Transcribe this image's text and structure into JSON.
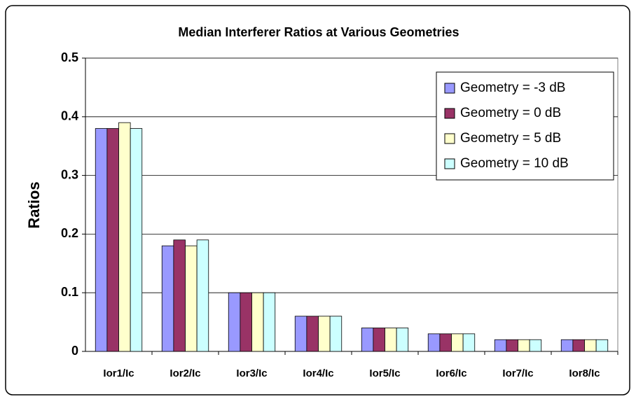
{
  "chart_data": {
    "type": "bar",
    "title": "Median Interferer Ratios at Various Geometries",
    "y_label": "Ratios",
    "categories": [
      "Ior1/Ic",
      "Ior2/Ic",
      "Ior3/Ic",
      "Ior4/Ic",
      "Ior5/Ic",
      "Ior6/Ic",
      "Ior7/Ic",
      "Ior8/Ic"
    ],
    "series": [
      {
        "name": "Geometry = -3 dB",
        "color": "#9999ff",
        "values": [
          0.38,
          0.18,
          0.1,
          0.06,
          0.04,
          0.03,
          0.02,
          0.02
        ]
      },
      {
        "name": "Geometry = 0 dB",
        "color": "#993366",
        "values": [
          0.38,
          0.19,
          0.1,
          0.06,
          0.04,
          0.03,
          0.02,
          0.02
        ]
      },
      {
        "name": "Geometry = 5 dB",
        "color": "#ffffcc",
        "values": [
          0.39,
          0.18,
          0.1,
          0.06,
          0.04,
          0.03,
          0.02,
          0.02
        ]
      },
      {
        "name": "Geometry = 10 dB",
        "color": "#ccffff",
        "values": [
          0.38,
          0.19,
          0.1,
          0.06,
          0.04,
          0.03,
          0.02,
          0.02
        ]
      }
    ],
    "ylim": [
      0,
      0.5
    ],
    "yticks": [
      0,
      0.1,
      0.2,
      0.3,
      0.4,
      0.5
    ],
    "grid": true,
    "legend": "upper-right"
  }
}
